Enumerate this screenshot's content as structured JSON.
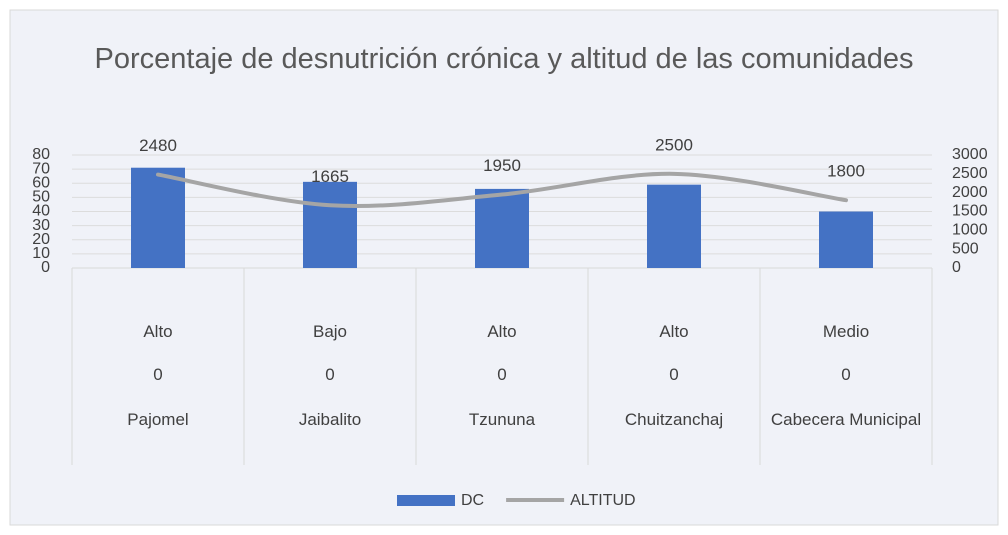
{
  "chart_data": {
    "type": "bar_line",
    "title": "Porcentaje de desnutrición crónica y altitud de las comunidades",
    "categories": [
      "Pajomel",
      "Jaibalito",
      "Tzununa",
      "Chuitzanchaj",
      "Cabecera Municipal"
    ],
    "category_levels": [
      [
        "Alto",
        "Bajo",
        "Alto",
        "Alto",
        "Medio"
      ],
      [
        "0",
        "0",
        "0",
        "0",
        "0"
      ]
    ],
    "series": [
      {
        "name": "DC",
        "type": "bar",
        "color": "#4472c4",
        "values": [
          71,
          61,
          56,
          59,
          40
        ]
      },
      {
        "name": "ALTITUD",
        "type": "line",
        "axis": "y2",
        "color": "#a5a5a5",
        "smooth": true,
        "values": [
          2480,
          1665,
          1950,
          2500,
          1800
        ]
      }
    ],
    "ylim": [
      0,
      80
    ],
    "yticks": [
      0,
      10,
      20,
      30,
      40,
      50,
      60,
      70,
      80
    ],
    "y2lim": [
      0,
      3000
    ],
    "y2ticks": [
      0,
      500,
      1000,
      1500,
      2000,
      2500,
      3000
    ],
    "grid": true,
    "legend": "bottom"
  }
}
